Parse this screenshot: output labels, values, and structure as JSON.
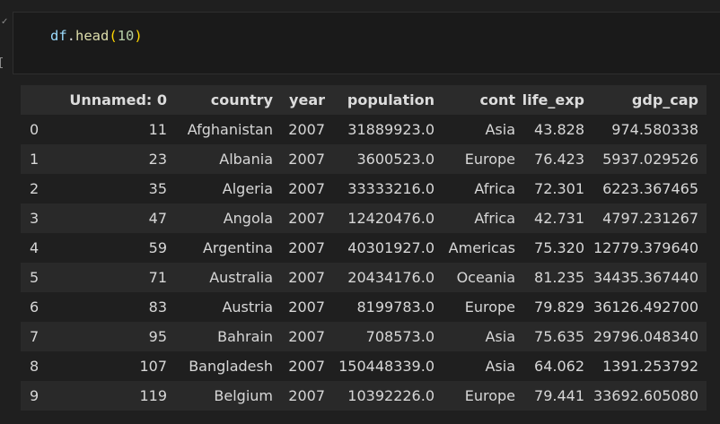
{
  "code_cell": {
    "tokens": {
      "var": "df",
      "dot": ".",
      "fn": "head",
      "open": "(",
      "arg": "10",
      "close": ")"
    },
    "gutter_status": "✓"
  },
  "output_table": {
    "columns": [
      "",
      "Unnamed: 0",
      "country",
      "year",
      "population",
      "cont",
      "life_exp",
      "gdp_cap"
    ],
    "rows": [
      [
        "0",
        "11",
        "Afghanistan",
        "2007",
        "31889923.0",
        "Asia",
        "43.828",
        "974.580338"
      ],
      [
        "1",
        "23",
        "Albania",
        "2007",
        "3600523.0",
        "Europe",
        "76.423",
        "5937.029526"
      ],
      [
        "2",
        "35",
        "Algeria",
        "2007",
        "33333216.0",
        "Africa",
        "72.301",
        "6223.367465"
      ],
      [
        "3",
        "47",
        "Angola",
        "2007",
        "12420476.0",
        "Africa",
        "42.731",
        "4797.231267"
      ],
      [
        "4",
        "59",
        "Argentina",
        "2007",
        "40301927.0",
        "Americas",
        "75.320",
        "12779.379640"
      ],
      [
        "5",
        "71",
        "Australia",
        "2007",
        "20434176.0",
        "Oceania",
        "81.235",
        "34435.367440"
      ],
      [
        "6",
        "83",
        "Austria",
        "2007",
        "8199783.0",
        "Europe",
        "79.829",
        "36126.492700"
      ],
      [
        "7",
        "95",
        "Bahrain",
        "2007",
        "708573.0",
        "Asia",
        "75.635",
        "29796.048340"
      ],
      [
        "8",
        "107",
        "Bangladesh",
        "2007",
        "150448339.0",
        "Asia",
        "64.062",
        "1391.253792"
      ],
      [
        "9",
        "119",
        "Belgium",
        "2007",
        "10392226.0",
        "Europe",
        "79.441",
        "33692.605080"
      ]
    ]
  },
  "colors": {
    "background": "#1f1f1f",
    "header_bg": "#2b2b2b",
    "stripe_bg": "#292929",
    "text": "#d7d7d7",
    "code_var": "#9cdcfe",
    "code_fn": "#dcdcaa",
    "code_paren": "#ffd700",
    "code_num": "#b5cea8"
  }
}
